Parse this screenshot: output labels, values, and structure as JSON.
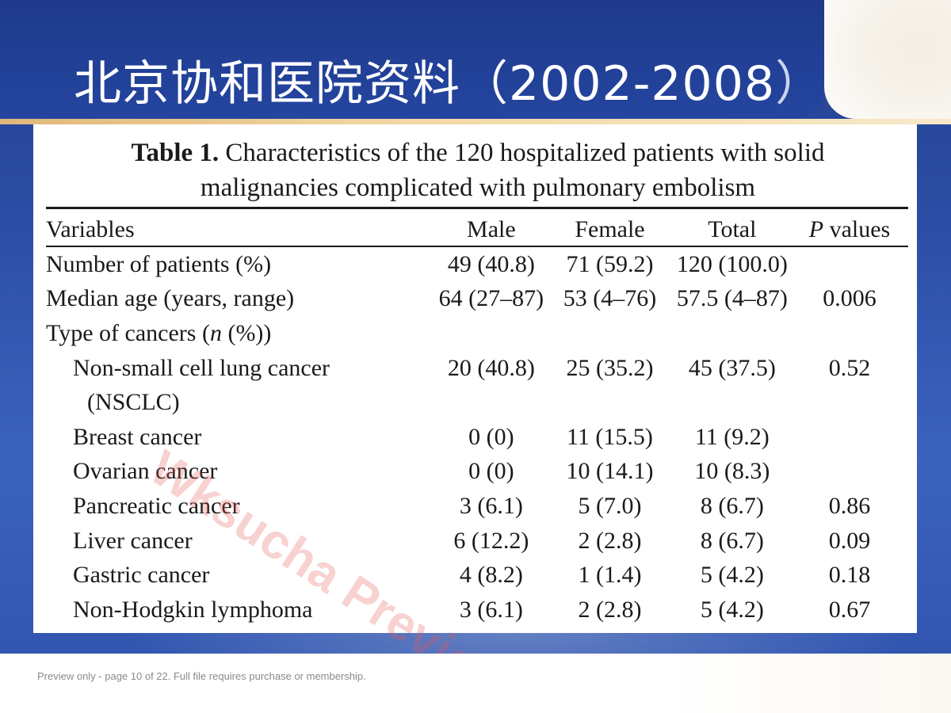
{
  "slide": {
    "title_main": "北京协和医院资料（2002-2008",
    "title_close": "）"
  },
  "table": {
    "caption_label": "Table 1.",
    "caption_line1": "Characteristics of the 120 hospitalized patients with solid",
    "caption_line2": "malignancies complicated with pulmonary embolism",
    "headers": {
      "variables": "Variables",
      "male": "Male",
      "female": "Female",
      "total": "Total",
      "p_prefix": "P",
      "p_suffix": " values"
    },
    "rows": [
      {
        "label": "Number of patients (%)",
        "male": "49 (40.8)",
        "female": "71 (59.2)",
        "total": "120 (100.0)",
        "p": ""
      },
      {
        "label": "Median age (years, range)",
        "male": "64 (27–87)",
        "female": "53 (4–76)",
        "total": "57.5 (4–87)",
        "p": "0.006"
      },
      {
        "label_prefix": "Type of cancers (",
        "label_italic": "n",
        "label_suffix": " (%))"
      },
      {
        "label": "Non-small cell lung cancer",
        "male": "20 (40.8)",
        "female": "25 (35.2)",
        "total": "45 (37.5)",
        "p": "0.52"
      },
      {
        "label": "(NSCLC)"
      },
      {
        "label": "Breast cancer",
        "male": "0 (0)",
        "female": "11 (15.5)",
        "total": "11 (9.2)",
        "p": ""
      },
      {
        "label": "Ovarian cancer",
        "male": "0 (0)",
        "female": "10 (14.1)",
        "total": "10 (8.3)",
        "p": ""
      },
      {
        "label": "Pancreatic cancer",
        "male": "3 (6.1)",
        "female": "5 (7.0)",
        "total": "8 (6.7)",
        "p": "0.86"
      },
      {
        "label": "Liver cancer",
        "male": "6 (12.2)",
        "female": "2 (2.8)",
        "total": "8 (6.7)",
        "p": "0.09"
      },
      {
        "label": "Gastric cancer",
        "male": "4 (8.2)",
        "female": "1 (1.4)",
        "total": "5 (4.2)",
        "p": "0.18"
      },
      {
        "label": "Non-Hodgkin lymphoma",
        "male": "3 (6.1)",
        "female": "2 (2.8)",
        "total": "5 (4.2)",
        "p": "0.67"
      }
    ]
  },
  "watermark": "Wksucha Preview",
  "footer": {
    "note": "Preview only - page 10 of 22. Full file requires purchase or membership."
  }
}
